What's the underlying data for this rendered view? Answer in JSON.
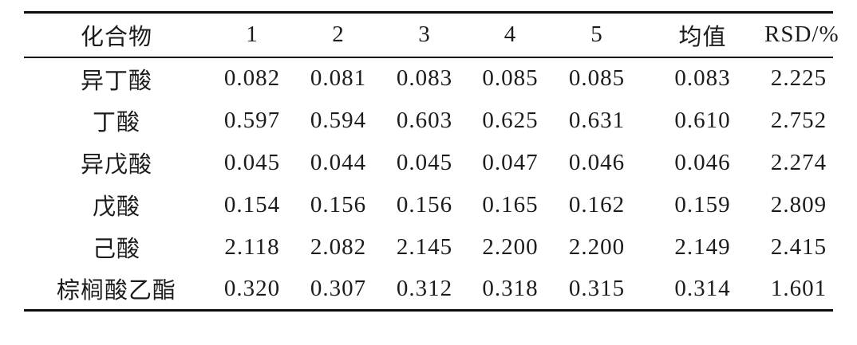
{
  "table": {
    "columns": [
      "化合物",
      "1",
      "2",
      "3",
      "4",
      "5",
      "均值",
      "RSD/%"
    ],
    "rows": [
      {
        "compound": "异丁酸",
        "values": [
          "0.082",
          "0.081",
          "0.083",
          "0.085",
          "0.085",
          "0.083",
          "2.225"
        ]
      },
      {
        "compound": "丁酸",
        "values": [
          "0.597",
          "0.594",
          "0.603",
          "0.625",
          "0.631",
          "0.610",
          "2.752"
        ]
      },
      {
        "compound": "异戊酸",
        "values": [
          "0.045",
          "0.044",
          "0.045",
          "0.047",
          "0.046",
          "0.046",
          "2.274"
        ]
      },
      {
        "compound": "戊酸",
        "values": [
          "0.154",
          "0.156",
          "0.156",
          "0.165",
          "0.162",
          "0.159",
          "2.809"
        ]
      },
      {
        "compound": "己酸",
        "values": [
          "2.118",
          "2.082",
          "2.145",
          "2.200",
          "2.200",
          "2.149",
          "2.415"
        ]
      },
      {
        "compound": "棕榈酸乙酯",
        "values": [
          "0.320",
          "0.307",
          "0.312",
          "0.318",
          "0.315",
          "0.314",
          "1.601"
        ]
      }
    ]
  },
  "colors": {
    "text": "#1c1c1c",
    "rule": "#0d0d0d",
    "background": "#ffffff"
  }
}
